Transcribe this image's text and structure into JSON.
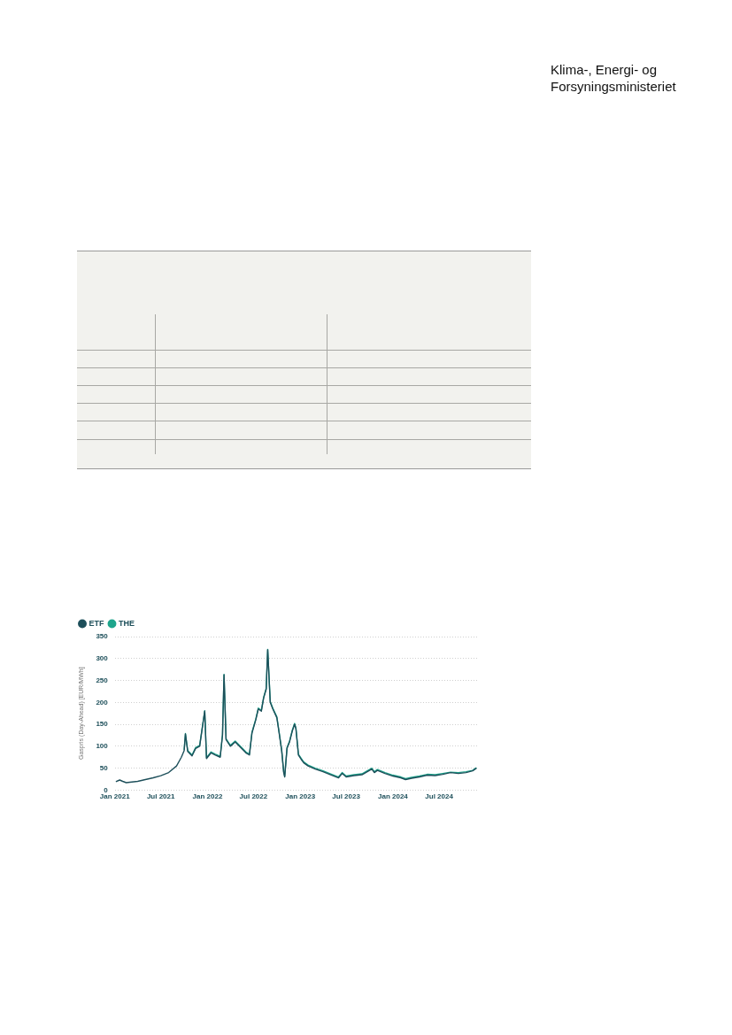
{
  "chart_data": {
    "type": "line",
    "annotations": [
      "Klima-, Energi- og Forsyningsministeriet"
    ],
    "ylabel": "Gaspris (Day-Ahead) [EUR/MWh]",
    "x": [
      "2021-01-05",
      "2021-01-20",
      "2021-02-01",
      "2021-02-15",
      "2021-03-01",
      "2021-04-01",
      "2021-05-01",
      "2021-06-01",
      "2021-07-01",
      "2021-08-01",
      "2021-09-01",
      "2021-09-20",
      "2021-10-01",
      "2021-10-06",
      "2021-10-15",
      "2021-11-01",
      "2021-11-15",
      "2021-12-01",
      "2021-12-21",
      "2021-12-28",
      "2022-01-15",
      "2022-02-01",
      "2022-02-20",
      "2022-03-01",
      "2022-03-07",
      "2022-03-15",
      "2022-04-01",
      "2022-04-20",
      "2022-05-15",
      "2022-06-01",
      "2022-06-15",
      "2022-06-25",
      "2022-07-10",
      "2022-07-20",
      "2022-08-01",
      "2022-08-10",
      "2022-08-20",
      "2022-08-26",
      "2022-09-05",
      "2022-09-15",
      "2022-10-01",
      "2022-10-10",
      "2022-10-20",
      "2022-10-28",
      "2022-11-01",
      "2022-11-10",
      "2022-11-20",
      "2022-12-01",
      "2022-12-10",
      "2022-12-15",
      "2022-12-25",
      "2023-01-05",
      "2023-01-15",
      "2023-02-01",
      "2023-03-01",
      "2023-04-01",
      "2023-05-01",
      "2023-06-01",
      "2023-06-15",
      "2023-07-01",
      "2023-08-01",
      "2023-09-01",
      "2023-10-10",
      "2023-10-20",
      "2023-11-01",
      "2023-12-01",
      "2024-01-01",
      "2024-02-01",
      "2024-02-20",
      "2024-03-15",
      "2024-04-15",
      "2024-05-15",
      "2024-06-15",
      "2024-07-15",
      "2024-08-15",
      "2024-09-15",
      "2024-10-15",
      "2024-11-10",
      "2024-11-25"
    ],
    "series": [
      {
        "name": "ETF",
        "color": "#1d4f5a",
        "values": [
          19,
          23,
          20,
          17,
          18,
          20,
          24,
          28,
          33,
          40,
          55,
          75,
          90,
          128,
          88,
          78,
          95,
          100,
          180,
          72,
          85,
          80,
          75,
          125,
          263,
          115,
          100,
          110,
          95,
          85,
          80,
          130,
          160,
          185,
          180,
          210,
          230,
          320,
          200,
          185,
          165,
          130,
          90,
          40,
          30,
          95,
          110,
          135,
          150,
          140,
          80,
          70,
          62,
          55,
          48,
          42,
          35,
          28,
          38,
          30,
          33,
          35,
          48,
          40,
          45,
          38,
          32,
          28,
          24,
          27,
          30,
          34,
          33,
          36,
          40,
          38,
          40,
          44,
          50
        ]
      },
      {
        "name": "THE",
        "color": "#1ea58c",
        "values": [
          null,
          null,
          null,
          null,
          null,
          null,
          null,
          null,
          null,
          null,
          null,
          null,
          92,
          129,
          90,
          80,
          97,
          102,
          181,
          74,
          87,
          82,
          77,
          127,
          264,
          117,
          102,
          112,
          97,
          87,
          82,
          132,
          162,
          187,
          182,
          212,
          232,
          321,
          202,
          187,
          167,
          132,
          92,
          42,
          32,
          97,
          112,
          137,
          152,
          142,
          82,
          72,
          64,
          57,
          50,
          44,
          37,
          30,
          40,
          32,
          35,
          37,
          50,
          42,
          47,
          40,
          34,
          30,
          26,
          29,
          32,
          36,
          35,
          38,
          41,
          40,
          42,
          45,
          51
        ]
      }
    ],
    "xlim": [
      "2021-01-01",
      "2024-12-01"
    ],
    "xticks": [
      {
        "value": "2021-01",
        "label": "Jan 2021"
      },
      {
        "value": "2021-07",
        "label": "Jul 2021"
      },
      {
        "value": "2022-01",
        "label": "Jan 2022"
      },
      {
        "value": "2022-07",
        "label": "Jul 2022"
      },
      {
        "value": "2023-01",
        "label": "Jan 2023"
      },
      {
        "value": "2023-07",
        "label": "Jul 2023"
      },
      {
        "value": "2024-01",
        "label": "Jan 2024"
      },
      {
        "value": "2024-07",
        "label": "Jul 2024"
      }
    ],
    "ylim": [
      0,
      350
    ],
    "yticks": [
      0,
      50,
      100,
      150,
      200,
      250,
      300,
      350
    ],
    "grid": "y",
    "legend": "top left",
    "marker": "none",
    "line_style": "solid"
  }
}
